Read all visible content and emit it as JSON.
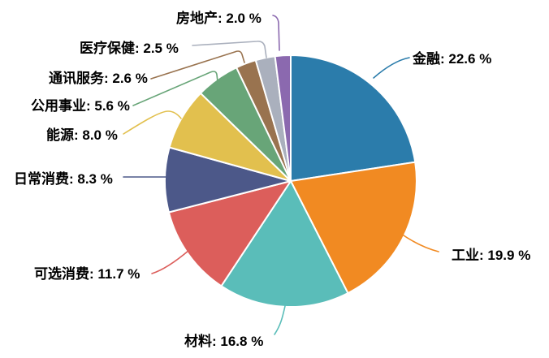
{
  "chart_data": {
    "type": "pie",
    "title": "",
    "direction": "clockwise",
    "start_angle_deg": 0,
    "total": 100.0,
    "label_format": "{label}: {value} %",
    "legend": "none (callout labels with leader lines)",
    "segments": [
      {
        "id": "finance",
        "label": "金融",
        "value": 22.6,
        "display": "金融: 22.6 %",
        "color": "#2b7cab"
      },
      {
        "id": "industrials",
        "label": "工业",
        "value": 19.9,
        "display": "工业: 19.9 %",
        "color": "#f18a22"
      },
      {
        "id": "materials",
        "label": "材料",
        "value": 16.8,
        "display": "材料: 16.8 %",
        "color": "#5abdb9"
      },
      {
        "id": "consumer-discretionary",
        "label": "可选消费",
        "value": 11.7,
        "display": "可选消费: 11.7 %",
        "color": "#dc5e5b"
      },
      {
        "id": "consumer-staples",
        "label": "日常消费",
        "value": 8.3,
        "display": "日常消费: 8.3 %",
        "color": "#4c5889"
      },
      {
        "id": "energy",
        "label": "能源",
        "value": 8.0,
        "display": "能源: 8.0 %",
        "color": "#e2c04e"
      },
      {
        "id": "utilities",
        "label": "公用事业",
        "value": 5.6,
        "display": "公用事业: 5.6 %",
        "color": "#68a578"
      },
      {
        "id": "communication-services",
        "label": "通讯服务",
        "value": 2.6,
        "display": "通讯服务: 2.6 %",
        "color": "#99734f"
      },
      {
        "id": "healthcare",
        "label": "医疗保健",
        "value": 2.5,
        "display": "医疗保健: 2.5 %",
        "color": "#aab0bd"
      },
      {
        "id": "real-estate",
        "label": "房地产",
        "value": 2.0,
        "display": "房地产: 2.0 %",
        "color": "#8b69af"
      }
    ]
  },
  "canvas": {
    "background": "#ffffff",
    "label_text_color": "#000000",
    "slice_border_color": "#ffffff"
  }
}
